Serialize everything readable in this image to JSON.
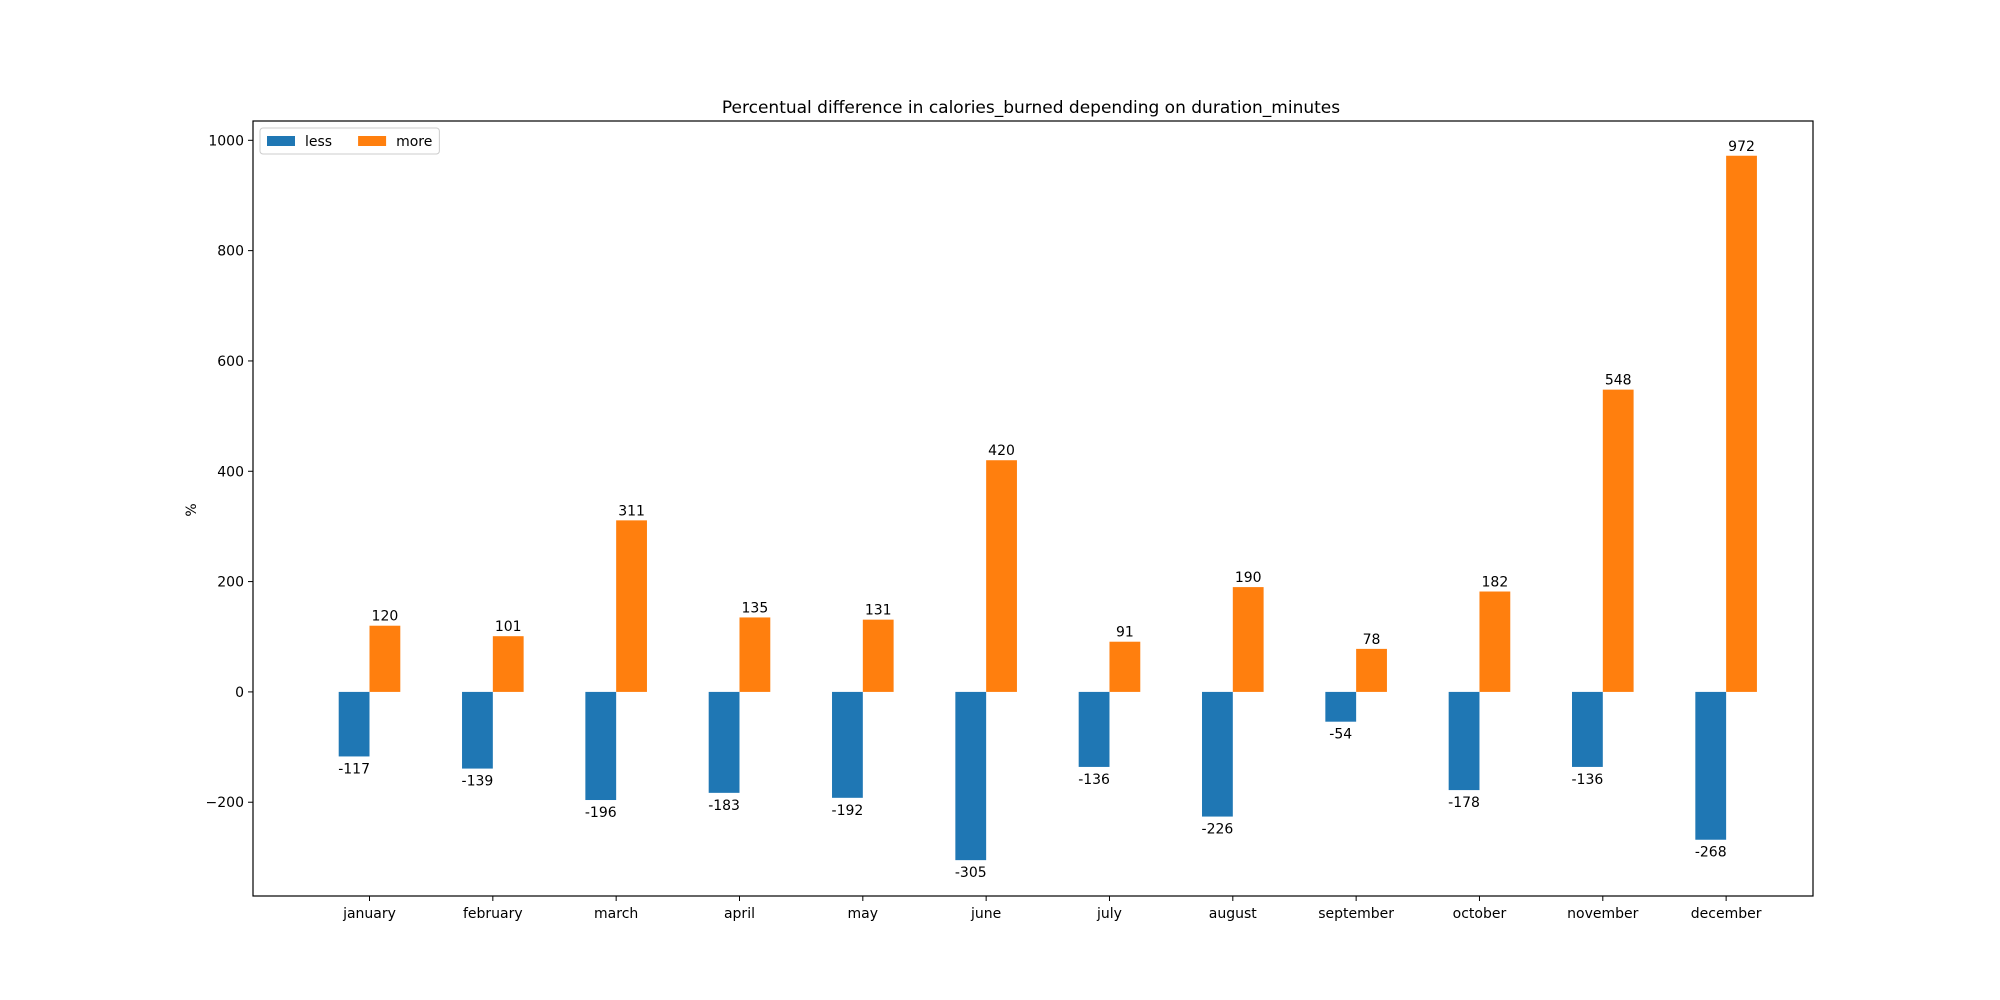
{
  "chart_data": {
    "type": "bar",
    "title": "Percentual difference in calories_burned depending on duration_minutes",
    "xlabel": "",
    "ylabel": "%",
    "categories": [
      "january",
      "february",
      "march",
      "april",
      "may",
      "june",
      "july",
      "august",
      "september",
      "october",
      "november",
      "december"
    ],
    "series": [
      {
        "name": "less",
        "color": "#1f77b4",
        "values": [
          -117,
          -139,
          -196,
          -183,
          -192,
          -305,
          -136,
          -226,
          -54,
          -178,
          -136,
          -268
        ]
      },
      {
        "name": "more",
        "color": "#ff7f0e",
        "values": [
          120,
          101,
          311,
          135,
          131,
          420,
          91,
          190,
          78,
          182,
          548,
          972
        ]
      }
    ],
    "ylim": [
      -370,
      1035
    ],
    "yticks": [
      -200,
      0,
      200,
      400,
      600,
      800,
      1000
    ],
    "grid": false,
    "legend": "top-left"
  }
}
